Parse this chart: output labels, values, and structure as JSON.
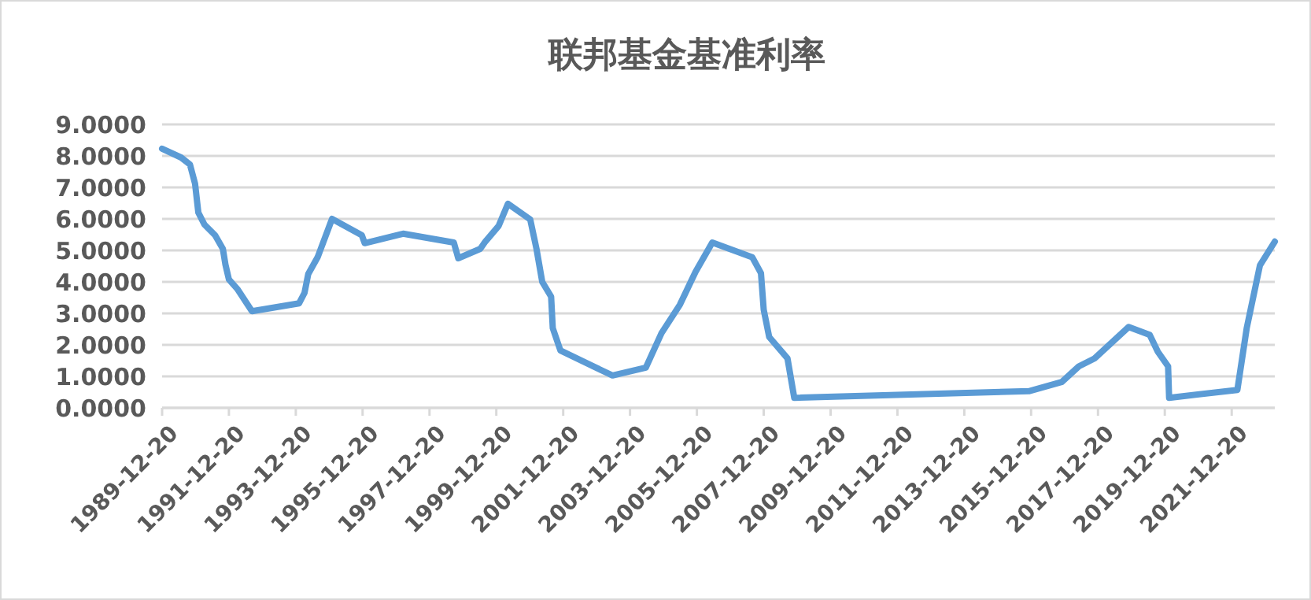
{
  "chart_data": {
    "type": "line",
    "title": "联邦基金基准利率",
    "x": [
      "1989-12-20",
      "1990-07-15",
      "1990-10-20",
      "1990-12-15",
      "1991-01-20",
      "1991-03-28",
      "1991-07-22",
      "1991-10-15",
      "1991-11-12",
      "1991-12-20",
      "1992-03-20",
      "1992-08-28",
      "1994-01-25",
      "1994-03-25",
      "1994-05-05",
      "1994-08-15",
      "1995-01-20",
      "1995-12-12",
      "1996-01-12",
      "1997-03-06",
      "1998-09-12",
      "1998-10-30",
      "1999-06-28",
      "1999-08-22",
      "2000-01-15",
      "2000-04-25",
      "2000-12-25",
      "2001-03-03",
      "2001-05-05",
      "2001-08-10",
      "2001-08-28",
      "2001-11-20",
      "2002-11-12",
      "2003-06-12",
      "2004-06-10",
      "2004-11-28",
      "2005-06-18",
      "2005-12-05",
      "2006-06-06",
      "2007-08-18",
      "2007-11-20",
      "2007-12-20",
      "2008-02-18",
      "2008-09-05",
      "2008-11-18",
      "2015-11-25",
      "2016-11-18",
      "2017-05-25",
      "2017-11-12",
      "2018-11-20",
      "2019-07-08",
      "2019-10-05",
      "2020-01-25",
      "2020-02-05",
      "2022-02-20",
      "2022-06-02",
      "2022-10-25",
      "2023-04-05"
    ],
    "series": [
      {
        "color": "#5b9bd5",
        "values": [
          8.23,
          7.95,
          7.73,
          7.12,
          6.2,
          5.82,
          5.48,
          5.05,
          4.55,
          4.08,
          3.78,
          3.07,
          3.32,
          3.65,
          4.25,
          4.78,
          6.0,
          5.48,
          5.23,
          5.53,
          5.25,
          4.75,
          5.05,
          5.28,
          5.78,
          6.48,
          5.98,
          5.05,
          4.0,
          3.53,
          2.53,
          1.82,
          1.32,
          1.03,
          1.28,
          2.37,
          3.28,
          4.32,
          5.25,
          4.78,
          4.28,
          3.12,
          2.25,
          1.57,
          0.32,
          0.53,
          0.82,
          1.32,
          1.57,
          2.57,
          2.32,
          1.78,
          1.32,
          0.32,
          0.57,
          2.53,
          4.53,
          5.28
        ]
      }
    ],
    "xlim": [
      "1989-12-20",
      "2023-04-05"
    ],
    "xticks": [
      "1989-12-20",
      "1991-12-20",
      "1993-12-20",
      "1995-12-20",
      "1997-12-20",
      "1999-12-20",
      "2001-12-20",
      "2003-12-20",
      "2005-12-20",
      "2007-12-20",
      "2009-12-20",
      "2011-12-20",
      "2013-12-20",
      "2015-12-20",
      "2017-12-20",
      "2019-12-20",
      "2021-12-20"
    ],
    "ylim": [
      0,
      9
    ],
    "yticks": [
      {
        "value": 0,
        "label": "0.0000"
      },
      {
        "value": 1,
        "label": "1.0000"
      },
      {
        "value": 2,
        "label": "2.0000"
      },
      {
        "value": 3,
        "label": "3.0000"
      },
      {
        "value": 4,
        "label": "4.0000"
      },
      {
        "value": 5,
        "label": "5.0000"
      },
      {
        "value": 6,
        "label": "6.0000"
      },
      {
        "value": 7,
        "label": "7.0000"
      },
      {
        "value": 8,
        "label": "8.0000"
      },
      {
        "value": 9,
        "label": "9.0000"
      }
    ],
    "grid": "y",
    "marker": "none",
    "line_style": "solid"
  }
}
